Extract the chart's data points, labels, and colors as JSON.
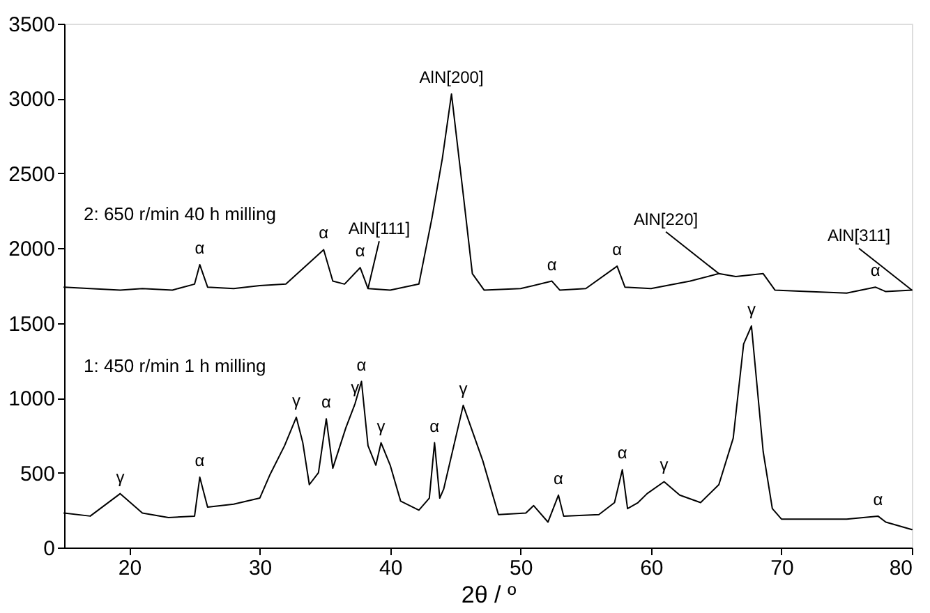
{
  "chart_data": {
    "type": "line",
    "xlabel": "2θ / º",
    "xlim": [
      15,
      80
    ],
    "ylim": [
      0,
      3500
    ],
    "xticks": [
      20,
      30,
      40,
      50,
      60,
      70,
      80
    ],
    "yticks": [
      0,
      500,
      1000,
      1500,
      2000,
      2500,
      3000,
      3500
    ],
    "grid": false,
    "line_style": "solid",
    "marker": "none",
    "series": [
      {
        "color": "#000000",
        "x": [
          15,
          17,
          19.3,
          21,
          23.3,
          25,
          25.4,
          26,
          28,
          30,
          32,
          34.9,
          35.6,
          36.5,
          37.7,
          38.3,
          40,
          42.2,
          43.2,
          44,
          44.7,
          45.6,
          46.3,
          47.2,
          50,
          52.4,
          53,
          55,
          57.4,
          58,
          60,
          63,
          65.2,
          66.5,
          68.6,
          69.5,
          72,
          75,
          77.2,
          78,
          80
        ],
        "values": [
          1740,
          1730,
          1720,
          1730,
          1720,
          1760,
          1890,
          1740,
          1730,
          1750,
          1760,
          1990,
          1780,
          1760,
          1870,
          1730,
          1720,
          1760,
          2200,
          2600,
          3030,
          2360,
          1830,
          1720,
          1730,
          1780,
          1720,
          1730,
          1880,
          1740,
          1730,
          1780,
          1830,
          1810,
          1830,
          1720,
          1710,
          1700,
          1740,
          1710,
          1720
        ]
      },
      {
        "color": "#000000",
        "x": [
          15,
          17,
          19.3,
          21,
          23,
          25,
          25.4,
          26,
          28,
          30,
          30.8,
          31.9,
          32.8,
          33.3,
          33.8,
          34.5,
          35.1,
          35.6,
          36.6,
          37.3,
          37.8,
          38.3,
          38.9,
          39.3,
          40,
          40.8,
          42.2,
          43,
          43.4,
          43.8,
          44.1,
          45.6,
          47.1,
          48.3,
          50.4,
          51,
          52.1,
          52.9,
          53.3,
          56,
          57.2,
          57.8,
          58.2,
          59,
          59.7,
          61,
          62.2,
          63.8,
          65.2,
          66.3,
          67.1,
          67.7,
          68.6,
          69.3,
          70,
          75,
          77.4,
          78,
          80
        ],
        "values": [
          230,
          210,
          360,
          230,
          200,
          210,
          470,
          270,
          290,
          330,
          490,
          680,
          870,
          700,
          420,
          500,
          860,
          530,
          800,
          960,
          1110,
          680,
          550,
          700,
          550,
          310,
          250,
          330,
          700,
          330,
          390,
          950,
          580,
          220,
          230,
          280,
          170,
          350,
          210,
          220,
          300,
          520,
          260,
          300,
          360,
          440,
          350,
          300,
          420,
          730,
          1360,
          1480,
          640,
          260,
          190,
          190,
          210,
          170,
          120
        ]
      }
    ],
    "annotations": [
      "2: 650 r/min 40 h milling",
      "1: 450 r/min 1 h milling",
      {
        "text": "AlN[200]",
        "x": 44.7,
        "y": 3030
      },
      {
        "text": "AlN[111]",
        "x": 38.3,
        "y": 1730
      },
      {
        "text": "AlN[220]",
        "x": 65.2,
        "y": 1830
      },
      {
        "text": "AlN[311]",
        "x": 80,
        "y": 1720
      },
      {
        "text": "α",
        "x": 25.4,
        "y": 1890
      },
      {
        "text": "α",
        "x": 34.9,
        "y": 1990
      },
      {
        "text": "α",
        "x": 37.7,
        "y": 1870
      },
      {
        "text": "α",
        "x": 52.4,
        "y": 1780
      },
      {
        "text": "α",
        "x": 57.4,
        "y": 1880
      },
      {
        "text": "α",
        "x": 77.2,
        "y": 1740
      },
      {
        "text": "γ",
        "x": 19.3,
        "y": 360
      },
      {
        "text": "α",
        "x": 25.4,
        "y": 470
      },
      {
        "text": "γ",
        "x": 32.8,
        "y": 870
      },
      {
        "text": "α",
        "x": 35.1,
        "y": 860
      },
      {
        "text": "γ",
        "x": 37.3,
        "y": 960
      },
      {
        "text": "α",
        "x": 37.8,
        "y": 1110
      },
      {
        "text": "γ",
        "x": 39.3,
        "y": 700
      },
      {
        "text": "α",
        "x": 43.4,
        "y": 700
      },
      {
        "text": "γ",
        "x": 45.6,
        "y": 950
      },
      {
        "text": "α",
        "x": 52.9,
        "y": 350
      },
      {
        "text": "α",
        "x": 57.8,
        "y": 520
      },
      {
        "text": "γ",
        "x": 61,
        "y": 440
      },
      {
        "text": "γ",
        "x": 67.7,
        "y": 1480
      },
      {
        "text": "α",
        "x": 77.4,
        "y": 210
      }
    ]
  }
}
